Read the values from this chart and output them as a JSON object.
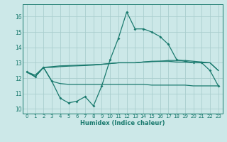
{
  "xlabel": "Humidex (Indice chaleur)",
  "x": [
    0,
    1,
    2,
    3,
    4,
    5,
    6,
    7,
    8,
    9,
    10,
    11,
    12,
    13,
    14,
    15,
    16,
    17,
    18,
    19,
    20,
    21,
    22,
    23
  ],
  "line1": [
    12.4,
    12.1,
    12.7,
    11.8,
    10.7,
    10.4,
    10.5,
    10.8,
    10.2,
    11.5,
    13.2,
    14.6,
    16.3,
    15.2,
    15.2,
    15.0,
    14.7,
    14.2,
    13.2,
    13.1,
    13.0,
    13.0,
    12.5,
    11.5
  ],
  "line2": [
    12.4,
    12.2,
    12.7,
    12.75,
    12.8,
    12.82,
    12.84,
    12.86,
    12.88,
    12.9,
    12.95,
    13.0,
    13.0,
    13.0,
    13.05,
    13.1,
    13.1,
    13.15,
    13.15,
    13.15,
    13.1,
    13.05,
    13.0,
    12.5
  ],
  "line3": [
    12.4,
    12.1,
    12.7,
    11.8,
    11.65,
    11.6,
    11.6,
    11.6,
    11.6,
    11.6,
    11.6,
    11.6,
    11.6,
    11.6,
    11.6,
    11.55,
    11.55,
    11.55,
    11.55,
    11.55,
    11.5,
    11.5,
    11.5,
    11.5
  ],
  "line4": [
    12.4,
    12.1,
    12.7,
    12.7,
    12.75,
    12.78,
    12.8,
    12.82,
    12.85,
    12.9,
    12.95,
    13.0,
    13.0,
    13.0,
    13.05,
    13.08,
    13.1,
    13.1,
    13.05,
    13.05,
    13.0,
    13.0,
    13.0,
    12.5
  ],
  "color": "#1a7a6e",
  "bg_color": "#cce8e8",
  "grid_color": "#aacece",
  "ylim": [
    9.7,
    16.8
  ],
  "yticks": [
    10,
    11,
    12,
    13,
    14,
    15,
    16
  ],
  "xticks": [
    0,
    1,
    2,
    3,
    4,
    5,
    6,
    7,
    8,
    9,
    10,
    11,
    12,
    13,
    14,
    15,
    16,
    17,
    18,
    19,
    20,
    21,
    22,
    23
  ]
}
